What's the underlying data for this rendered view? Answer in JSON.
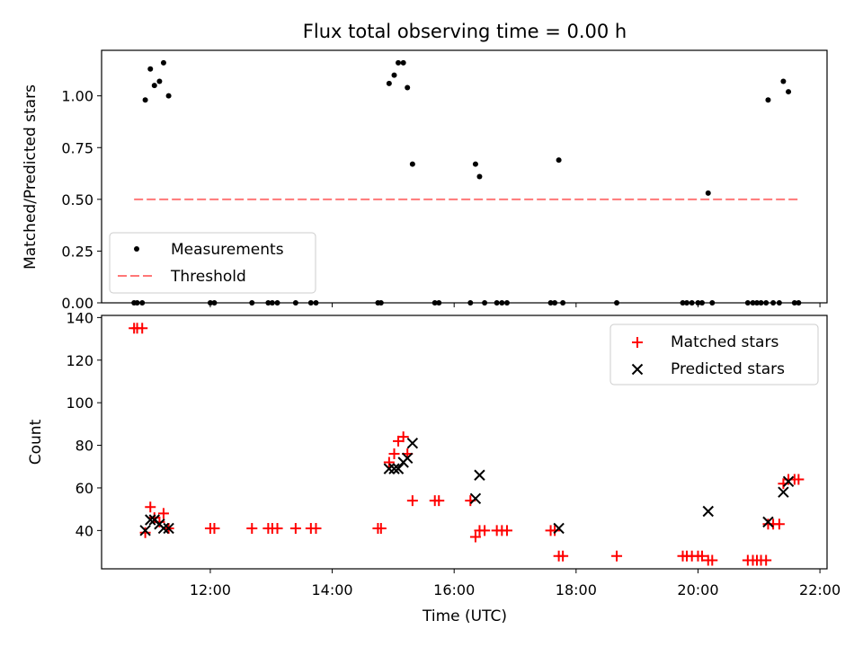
{
  "chart_data": [
    {
      "type": "scatter",
      "title": "Flux total observing time = 0.00 h",
      "ylabel": "Matched/Predicted stars",
      "xlabel": "",
      "ylim": [
        0,
        1.22
      ],
      "xlim": [
        "10:13",
        "22:07"
      ],
      "yticks": [
        "0.00",
        "0.25",
        "0.50",
        "0.75",
        "1.00"
      ],
      "grid": false,
      "legend_position": "lower-left",
      "threshold": {
        "name": "Threshold",
        "y": 0.5,
        "x_range": [
          "10:45",
          "21:40"
        ],
        "color": "#ff7777"
      },
      "series": [
        {
          "name": "Measurements",
          "color": "#000000",
          "points": [
            [
              "10:45",
              0
            ],
            [
              "10:48",
              0
            ],
            [
              "10:53",
              0
            ],
            [
              "10:56",
              0.98
            ],
            [
              "11:01",
              1.13
            ],
            [
              "11:05",
              1.05
            ],
            [
              "11:10",
              1.07
            ],
            [
              "11:14",
              1.16
            ],
            [
              "11:19",
              1.0
            ],
            [
              "12:00",
              0
            ],
            [
              "12:04",
              0
            ],
            [
              "12:41",
              0
            ],
            [
              "12:57",
              0
            ],
            [
              "13:01",
              0
            ],
            [
              "13:06",
              0
            ],
            [
              "13:24",
              0
            ],
            [
              "13:39",
              0
            ],
            [
              "13:44",
              0
            ],
            [
              "14:45",
              0
            ],
            [
              "14:48",
              0
            ],
            [
              "14:56",
              1.06
            ],
            [
              "15:01",
              1.1
            ],
            [
              "15:05",
              1.16
            ],
            [
              "15:10",
              1.16
            ],
            [
              "15:14",
              1.04
            ],
            [
              "15:19",
              0.67
            ],
            [
              "15:41",
              0
            ],
            [
              "15:45",
              0
            ],
            [
              "16:16",
              0
            ],
            [
              "16:21",
              0.67
            ],
            [
              "16:25",
              0.61
            ],
            [
              "16:30",
              0
            ],
            [
              "16:42",
              0
            ],
            [
              "16:47",
              0
            ],
            [
              "16:52",
              0
            ],
            [
              "17:35",
              0
            ],
            [
              "17:39",
              0
            ],
            [
              "17:43",
              0.69
            ],
            [
              "17:47",
              0
            ],
            [
              "18:40",
              0
            ],
            [
              "19:45",
              0
            ],
            [
              "19:49",
              0
            ],
            [
              "19:54",
              0
            ],
            [
              "20:00",
              0
            ],
            [
              "20:04",
              0
            ],
            [
              "20:10",
              0.53
            ],
            [
              "20:14",
              0
            ],
            [
              "20:49",
              0
            ],
            [
              "20:54",
              0
            ],
            [
              "20:58",
              0
            ],
            [
              "21:02",
              0
            ],
            [
              "21:07",
              0
            ],
            [
              "21:09",
              0.98
            ],
            [
              "21:14",
              0
            ],
            [
              "21:20",
              0
            ],
            [
              "21:24",
              1.07
            ],
            [
              "21:29",
              1.02
            ],
            [
              "21:35",
              0
            ],
            [
              "21:39",
              0
            ]
          ]
        }
      ]
    },
    {
      "type": "scatter",
      "title": "",
      "xlabel": "Time (UTC)",
      "ylabel": "Count",
      "ylim": [
        22,
        141
      ],
      "xlim": [
        "10:13",
        "22:07"
      ],
      "yticks": [
        "40",
        "60",
        "80",
        "100",
        "120",
        "140"
      ],
      "xticks": [
        "12:00",
        "14:00",
        "16:00",
        "18:00",
        "20:00",
        "22:00"
      ],
      "grid": false,
      "legend_position": "top-right",
      "series": [
        {
          "name": "Matched stars",
          "marker": "+",
          "color": "#ff0000",
          "points": [
            [
              "10:45",
              135
            ],
            [
              "10:48",
              135
            ],
            [
              "10:53",
              135
            ],
            [
              "10:56",
              39
            ],
            [
              "11:01",
              51
            ],
            [
              "11:05",
              46
            ],
            [
              "11:10",
              44
            ],
            [
              "11:14",
              48
            ],
            [
              "11:19",
              41
            ],
            [
              "12:00",
              41
            ],
            [
              "12:04",
              41
            ],
            [
              "12:41",
              41
            ],
            [
              "12:57",
              41
            ],
            [
              "13:01",
              41
            ],
            [
              "13:06",
              41
            ],
            [
              "13:24",
              41
            ],
            [
              "13:39",
              41
            ],
            [
              "13:44",
              41
            ],
            [
              "14:45",
              41
            ],
            [
              "14:48",
              41
            ],
            [
              "14:56",
              72
            ],
            [
              "15:01",
              76
            ],
            [
              "15:05",
              82
            ],
            [
              "15:10",
              84
            ],
            [
              "15:14",
              76
            ],
            [
              "15:19",
              54
            ],
            [
              "15:41",
              54
            ],
            [
              "15:45",
              54
            ],
            [
              "16:16",
              54
            ],
            [
              "16:21",
              37
            ],
            [
              "16:25",
              40
            ],
            [
              "16:30",
              40
            ],
            [
              "16:42",
              40
            ],
            [
              "16:47",
              40
            ],
            [
              "16:52",
              40
            ],
            [
              "17:35",
              40
            ],
            [
              "17:39",
              40
            ],
            [
              "17:43",
              28
            ],
            [
              "17:47",
              28
            ],
            [
              "18:40",
              28
            ],
            [
              "19:45",
              28
            ],
            [
              "19:49",
              28
            ],
            [
              "19:54",
              28
            ],
            [
              "20:00",
              28
            ],
            [
              "20:04",
              28
            ],
            [
              "20:10",
              26
            ],
            [
              "20:14",
              26
            ],
            [
              "20:49",
              26
            ],
            [
              "20:54",
              26
            ],
            [
              "20:58",
              26
            ],
            [
              "21:02",
              26
            ],
            [
              "21:07",
              26
            ],
            [
              "21:09",
              43
            ],
            [
              "21:14",
              43
            ],
            [
              "21:20",
              43
            ],
            [
              "21:24",
              62
            ],
            [
              "21:29",
              64
            ],
            [
              "21:35",
              64
            ],
            [
              "21:39",
              64
            ]
          ]
        },
        {
          "name": "Predicted stars",
          "marker": "x",
          "color": "#000000",
          "points": [
            [
              "10:56",
              40
            ],
            [
              "11:01",
              45
            ],
            [
              "11:05",
              45
            ],
            [
              "11:10",
              43
            ],
            [
              "11:14",
              41
            ],
            [
              "11:19",
              41
            ],
            [
              "14:56",
              69
            ],
            [
              "15:01",
              69
            ],
            [
              "15:05",
              69
            ],
            [
              "15:10",
              72
            ],
            [
              "15:14",
              74
            ],
            [
              "15:19",
              81
            ],
            [
              "16:21",
              55
            ],
            [
              "16:25",
              66
            ],
            [
              "17:43",
              41
            ],
            [
              "20:10",
              49
            ],
            [
              "21:09",
              44
            ],
            [
              "21:24",
              58
            ],
            [
              "21:29",
              63
            ]
          ]
        }
      ]
    }
  ]
}
